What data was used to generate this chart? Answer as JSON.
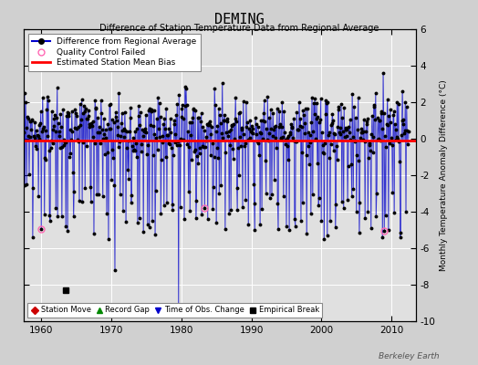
{
  "title": "DEMING",
  "subtitle": "Difference of Station Temperature Data from Regional Average",
  "ylabel": "Monthly Temperature Anomaly Difference (°C)",
  "ylim": [
    -10,
    6
  ],
  "xlim": [
    1957.5,
    2013.5
  ],
  "xticks": [
    1960,
    1970,
    1980,
    1990,
    2000,
    2010
  ],
  "yticks": [
    -10,
    -8,
    -6,
    -4,
    -2,
    0,
    2,
    4,
    6
  ],
  "bias_line_y": -0.1,
  "bias_line_color": "#ff0000",
  "main_line_color": "#0000cc",
  "dot_color": "#000000",
  "qc_failed_color": "#ff69b4",
  "plot_bg_color": "#e0e0e0",
  "fig_bg_color": "#d0d0d0",
  "grid_color": "#ffffff",
  "attribution": "Berkeley Earth",
  "seed": 99,
  "n_months": 660,
  "start_year": 1957.5
}
